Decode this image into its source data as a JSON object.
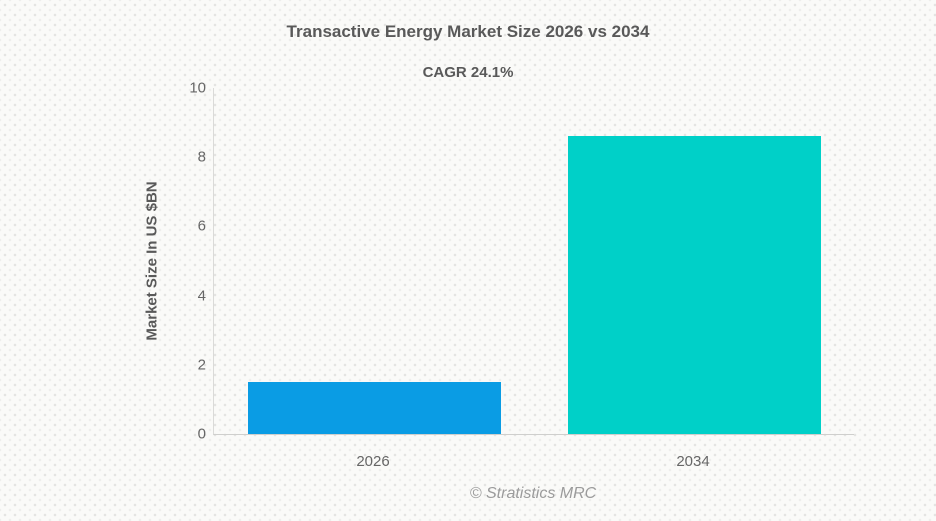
{
  "chart": {
    "title": "Transactive Energy Market Size 2026 vs 2034",
    "subtitle": "CAGR 24.1%",
    "ylabel": "Market Size In US $BN",
    "source": "© Stratistics MRC"
  },
  "chart_data": {
    "type": "bar",
    "title": "Transactive Energy Market Size 2026 vs 2034",
    "subtitle": "CAGR 24.1%",
    "categories": [
      "2026",
      "2034"
    ],
    "values": [
      1.5,
      8.6
    ],
    "bar_colors": [
      "#0a9ce4",
      "#00d0c8"
    ],
    "xlabel": "",
    "ylabel": "Market Size In US $BN",
    "ylim": [
      0,
      10
    ],
    "yticks": [
      0,
      2,
      4,
      6,
      8,
      10
    ],
    "grid": false,
    "legend": "none",
    "annotations": [
      "CAGR 24.1%"
    ],
    "source": "© Stratistics MRC"
  }
}
